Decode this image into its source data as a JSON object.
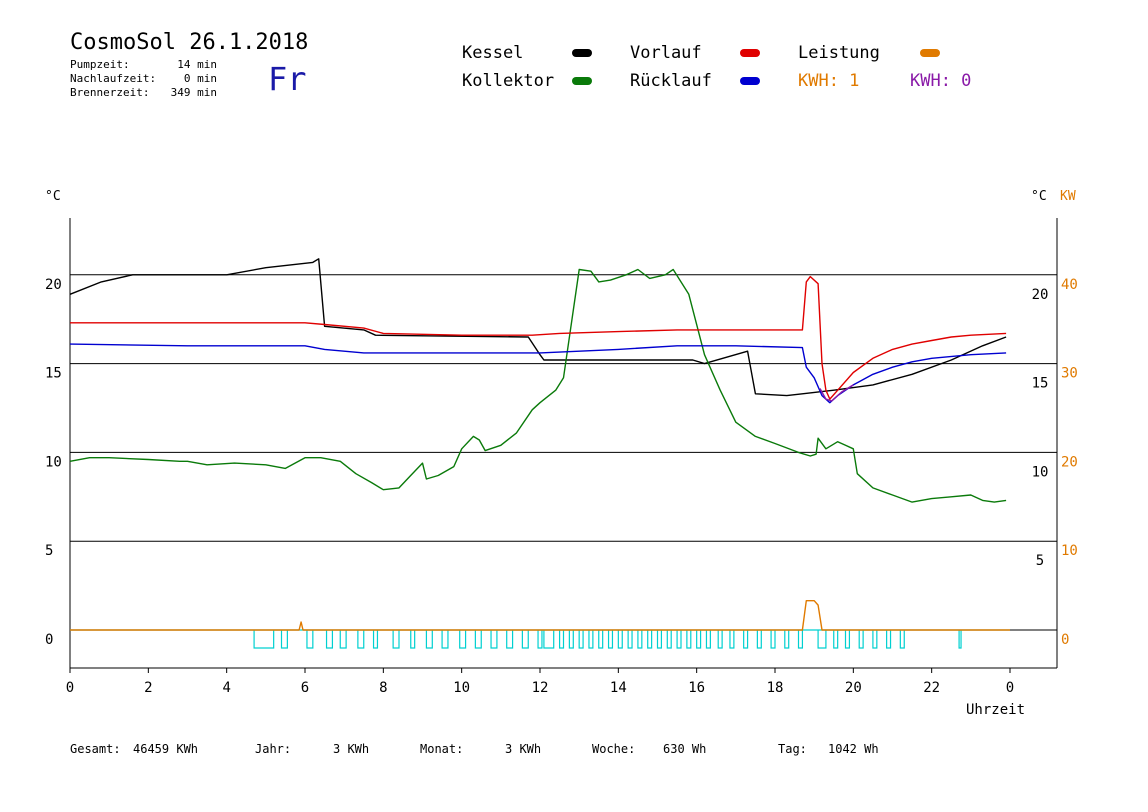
{
  "header": {
    "title": "CosmoSol 26.1.2018",
    "pump_label": "Pumpzeit:",
    "pump_value": "14 min",
    "nachlauf_label": "Nachlaufzeit:",
    "nachlauf_value": "0 min",
    "brenner_label": "Brennerzeit:",
    "brenner_value": "349 min",
    "weekday": "Fr"
  },
  "legend": {
    "kessel": "Kessel",
    "kollektor": "Kollektor",
    "vorlauf": "Vorlauf",
    "ruecklauf": "Rücklauf",
    "leistung": "Leistung",
    "kwh1": "KWH: 1",
    "kwh0": "KWH: 0"
  },
  "colors": {
    "kessel": "#000000",
    "kollektor": "#0a7a0a",
    "vorlauf": "#e00000",
    "ruecklauf": "#0000d0",
    "leistung": "#e07a00",
    "kwh0": "#8a1aa8",
    "pump": "#00d0d0"
  },
  "footer": {
    "gesamt_label": "Gesamt:",
    "gesamt_value": "46459 KWh",
    "jahr_label": "Jahr:",
    "jahr_value": "3 KWh",
    "monat_label": "Monat:",
    "monat_value": "3 KWh",
    "woche_label": "Woche:",
    "woche_value": "630 Wh",
    "tag_label": "Tag:",
    "tag_value": "1042 Wh"
  },
  "chart_data": {
    "type": "line",
    "xlabel": "Uhrzeit",
    "ylabel_left": "°C",
    "ylabel_right": "°C",
    "ylabel_right2": "KW",
    "xlim": [
      0,
      24
    ],
    "ylim_left": [
      -2,
      24
    ],
    "x_ticks": [
      "0",
      "2",
      "4",
      "6",
      "8",
      "10",
      "12",
      "14",
      "16",
      "18",
      "20",
      "22",
      "0"
    ],
    "y_ticks_left": [
      "0",
      "5",
      "10",
      "15",
      "20"
    ],
    "y_ticks_right": [
      "5",
      "10",
      "15",
      "20"
    ],
    "y_ticks_kw": [
      "0",
      "10",
      "20",
      "30",
      "40"
    ],
    "grid": true,
    "series": [
      {
        "name": "Kessel",
        "key": "kessel",
        "points": [
          [
            0,
            18.9
          ],
          [
            0.8,
            19.6
          ],
          [
            1.6,
            20.0
          ],
          [
            4,
            20.0
          ],
          [
            5,
            20.4
          ],
          [
            6.2,
            20.7
          ],
          [
            6.35,
            20.9
          ],
          [
            6.5,
            17.1
          ],
          [
            7.5,
            16.9
          ],
          [
            7.8,
            16.6
          ],
          [
            11.7,
            16.5
          ],
          [
            12,
            15.5
          ],
          [
            12.1,
            15.2
          ],
          [
            15.9,
            15.2
          ],
          [
            16.2,
            15.0
          ],
          [
            17.3,
            15.7
          ],
          [
            17.5,
            13.3
          ],
          [
            18.3,
            13.2
          ],
          [
            18.7,
            13.3
          ],
          [
            19.5,
            13.5
          ],
          [
            20.5,
            13.8
          ],
          [
            21.5,
            14.4
          ],
          [
            22.5,
            15.2
          ],
          [
            23.3,
            16.0
          ],
          [
            23.9,
            16.5
          ]
        ]
      },
      {
        "name": "Kollektor",
        "key": "kollektor",
        "points": [
          [
            0,
            9.5
          ],
          [
            0.5,
            9.7
          ],
          [
            1,
            9.7
          ],
          [
            2,
            9.6
          ],
          [
            2.8,
            9.5
          ],
          [
            3,
            9.5
          ],
          [
            3.5,
            9.3
          ],
          [
            4.2,
            9.4
          ],
          [
            5,
            9.3
          ],
          [
            5.5,
            9.1
          ],
          [
            6,
            9.7
          ],
          [
            6.4,
            9.7
          ],
          [
            6.9,
            9.5
          ],
          [
            7.3,
            8.8
          ],
          [
            7.7,
            8.3
          ],
          [
            8,
            7.9
          ],
          [
            8.4,
            8.0
          ],
          [
            8.7,
            8.7
          ],
          [
            9,
            9.4
          ],
          [
            9.1,
            8.5
          ],
          [
            9.4,
            8.7
          ],
          [
            9.8,
            9.2
          ],
          [
            10,
            10.2
          ],
          [
            10.3,
            10.9
          ],
          [
            10.45,
            10.7
          ],
          [
            10.6,
            10.1
          ],
          [
            11,
            10.4
          ],
          [
            11.4,
            11.1
          ],
          [
            11.8,
            12.4
          ],
          [
            12,
            12.8
          ],
          [
            12.4,
            13.5
          ],
          [
            12.6,
            14.2
          ],
          [
            13,
            20.3
          ],
          [
            13.3,
            20.2
          ],
          [
            13.5,
            19.6
          ],
          [
            13.8,
            19.7
          ],
          [
            14.2,
            20.0
          ],
          [
            14.5,
            20.3
          ],
          [
            14.8,
            19.8
          ],
          [
            15.2,
            20.0
          ],
          [
            15.4,
            20.3
          ],
          [
            15.8,
            18.9
          ],
          [
            16.2,
            15.5
          ],
          [
            16.6,
            13.5
          ],
          [
            17,
            11.7
          ],
          [
            17.5,
            10.9
          ],
          [
            18,
            10.5
          ],
          [
            18.6,
            10.0
          ],
          [
            18.9,
            9.8
          ],
          [
            19.05,
            9.9
          ],
          [
            19.1,
            10.8
          ],
          [
            19.3,
            10.2
          ],
          [
            19.6,
            10.6
          ],
          [
            19.8,
            10.4
          ],
          [
            20,
            10.2
          ],
          [
            20.1,
            8.8
          ],
          [
            20.5,
            8.0
          ],
          [
            21,
            7.6
          ],
          [
            21.5,
            7.2
          ],
          [
            22,
            7.4
          ],
          [
            22.5,
            7.5
          ],
          [
            23,
            7.6
          ],
          [
            23.3,
            7.3
          ],
          [
            23.6,
            7.2
          ],
          [
            23.9,
            7.3
          ]
        ]
      },
      {
        "name": "Vorlauf",
        "key": "vorlauf",
        "points": [
          [
            0,
            17.3
          ],
          [
            3,
            17.3
          ],
          [
            6,
            17.3
          ],
          [
            6.5,
            17.2
          ],
          [
            7.5,
            17.0
          ],
          [
            8,
            16.7
          ],
          [
            10,
            16.6
          ],
          [
            11.8,
            16.6
          ],
          [
            12.5,
            16.7
          ],
          [
            14,
            16.8
          ],
          [
            15.5,
            16.9
          ],
          [
            17,
            16.9
          ],
          [
            18.7,
            16.9
          ],
          [
            18.8,
            19.6
          ],
          [
            18.9,
            19.9
          ],
          [
            19.1,
            19.5
          ],
          [
            19.2,
            15.0
          ],
          [
            19.3,
            13.5
          ],
          [
            19.4,
            13.0
          ],
          [
            19.6,
            13.5
          ],
          [
            20,
            14.5
          ],
          [
            20.5,
            15.3
          ],
          [
            21,
            15.8
          ],
          [
            21.5,
            16.1
          ],
          [
            22,
            16.3
          ],
          [
            22.5,
            16.5
          ],
          [
            23,
            16.6
          ],
          [
            23.9,
            16.7
          ]
        ]
      },
      {
        "name": "Rücklauf",
        "key": "ruecklauf",
        "points": [
          [
            0,
            16.1
          ],
          [
            3,
            16.0
          ],
          [
            6,
            16.0
          ],
          [
            6.5,
            15.8
          ],
          [
            7.5,
            15.6
          ],
          [
            10,
            15.6
          ],
          [
            12,
            15.6
          ],
          [
            13,
            15.7
          ],
          [
            14,
            15.8
          ],
          [
            15.5,
            16.0
          ],
          [
            17,
            16.0
          ],
          [
            18.7,
            15.9
          ],
          [
            18.8,
            14.8
          ],
          [
            19,
            14.2
          ],
          [
            19.2,
            13.2
          ],
          [
            19.4,
            12.8
          ],
          [
            19.6,
            13.2
          ],
          [
            20,
            13.8
          ],
          [
            20.5,
            14.4
          ],
          [
            21,
            14.8
          ],
          [
            21.5,
            15.1
          ],
          [
            22,
            15.3
          ],
          [
            23,
            15.5
          ],
          [
            23.9,
            15.6
          ]
        ]
      },
      {
        "name": "KWH: 0",
        "key": "kwh0",
        "points": [
          [
            19.15,
            13.6
          ],
          [
            19.3,
            13.0
          ],
          [
            19.45,
            12.9
          ],
          [
            19.7,
            13.4
          ],
          [
            20,
            13.8
          ]
        ]
      },
      {
        "name": "Leistung",
        "key": "leistung",
        "points": [
          [
            0,
            0
          ],
          [
            5.85,
            0
          ],
          [
            5.9,
            0.45
          ],
          [
            5.95,
            0
          ],
          [
            18.7,
            0
          ],
          [
            18.8,
            1.65
          ],
          [
            19.0,
            1.65
          ],
          [
            19.1,
            1.4
          ],
          [
            19.2,
            0
          ],
          [
            24,
            0
          ]
        ]
      }
    ],
    "pump_runs": [
      [
        4.7,
        5.2
      ],
      [
        5.4,
        5.55
      ],
      [
        6.05,
        6.2
      ],
      [
        6.55,
        6.7
      ],
      [
        6.9,
        7.05
      ],
      [
        7.35,
        7.5
      ],
      [
        7.75,
        7.85
      ],
      [
        8.25,
        8.4
      ],
      [
        8.7,
        8.8
      ],
      [
        9.1,
        9.25
      ],
      [
        9.5,
        9.65
      ],
      [
        9.95,
        10.1
      ],
      [
        10.35,
        10.5
      ],
      [
        10.75,
        10.9
      ],
      [
        11.15,
        11.3
      ],
      [
        11.55,
        11.7
      ],
      [
        11.95,
        12.05
      ],
      [
        12.1,
        12.35
      ],
      [
        12.5,
        12.6
      ],
      [
        12.75,
        12.85
      ],
      [
        13.0,
        13.1
      ],
      [
        13.25,
        13.35
      ],
      [
        13.5,
        13.6
      ],
      [
        13.75,
        13.85
      ],
      [
        14.0,
        14.1
      ],
      [
        14.25,
        14.35
      ],
      [
        14.5,
        14.6
      ],
      [
        14.75,
        14.85
      ],
      [
        15.0,
        15.1
      ],
      [
        15.25,
        15.35
      ],
      [
        15.5,
        15.6
      ],
      [
        15.75,
        15.85
      ],
      [
        16.0,
        16.1
      ],
      [
        16.25,
        16.35
      ],
      [
        16.55,
        16.65
      ],
      [
        16.85,
        16.95
      ],
      [
        17.2,
        17.3
      ],
      [
        17.55,
        17.65
      ],
      [
        17.9,
        18.0
      ],
      [
        18.25,
        18.35
      ],
      [
        18.6,
        18.7
      ],
      [
        19.1,
        19.3
      ],
      [
        19.5,
        19.6
      ],
      [
        19.8,
        19.9
      ],
      [
        20.15,
        20.25
      ],
      [
        20.5,
        20.6
      ],
      [
        20.85,
        20.95
      ],
      [
        21.2,
        21.3
      ],
      [
        22.7,
        22.75
      ]
    ]
  }
}
